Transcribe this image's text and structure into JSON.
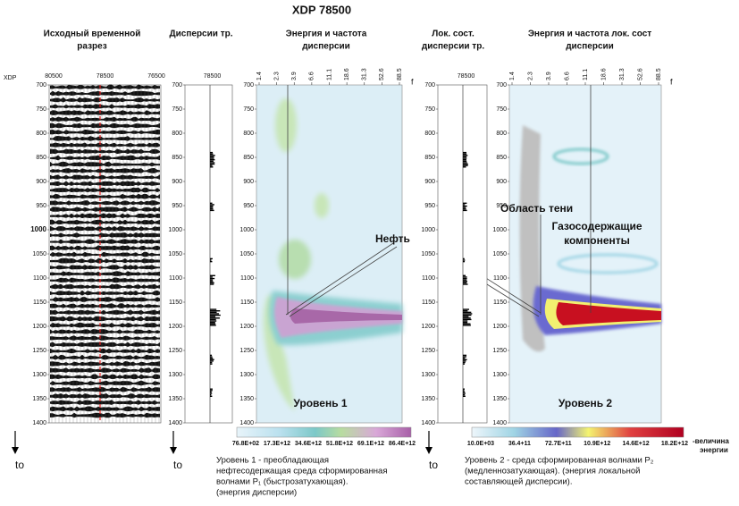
{
  "title": "XDP 78500",
  "xdp_label": "XDP",
  "depth_ticks": [
    700,
    750,
    800,
    850,
    900,
    950,
    1000,
    1050,
    1100,
    1150,
    1200,
    1250,
    1300,
    1350,
    1400
  ],
  "panels": [
    {
      "title": [
        "Исходный временной",
        "разрез"
      ],
      "top_ticks": [
        "80500",
        "78500",
        "76500"
      ]
    },
    {
      "title": [
        "Дисперсии тр."
      ],
      "top_ticks": [
        "78500"
      ]
    },
    {
      "title": [
        "Энергия и частота",
        "дисперсии"
      ],
      "top_ticks": [
        "1.4",
        "2.3",
        "3.9",
        "6.6",
        "11.1",
        "18.6",
        "31.3",
        "52.6",
        "88.5"
      ],
      "axis_end": "f",
      "level": "Уровень 1"
    },
    {
      "title": [
        "Лок. сост.",
        "дисперсии тр."
      ],
      "top_ticks": [
        "78500"
      ]
    },
    {
      "title": [
        "Энергия и частота лок. сост",
        "дисперсии"
      ],
      "top_ticks": [
        "1.4",
        "2.3",
        "3.9",
        "6.6",
        "11.1",
        "18.6",
        "31.3",
        "52.6",
        "88.5"
      ],
      "axis_end": "f",
      "level": "Уровень 2"
    }
  ],
  "to_label": "to",
  "annotations": {
    "oil": "Нефть",
    "shadow": "Область тени",
    "gas": [
      "Газосодержащие",
      "компоненты"
    ]
  },
  "colorbar1": [
    "76.8E+02",
    "17.3E+12",
    "34.6E+12",
    "51.8E+12",
    "69.1E+12",
    "86.4E+12"
  ],
  "colorbar2": [
    "10.0E+03",
    "36.4+11",
    "72.7E+11",
    "10.9E+12",
    "14.6E+12",
    "18.2E+12"
  ],
  "colorbar2_unit": [
    "-величина",
    "энергии"
  ],
  "caption1": [
    "Уровень 1 - преобладающая",
    "нефтесодержащая  среда сформированная",
    "волнами P₁ (быстрозатухающая).",
    "(энергия дисперсии)"
  ],
  "caption2": [
    "Уровень 2 - среда сформированная  волнами P₂",
    "(медленнозатухающая).       (энергия локальной",
    "составляющей дисперсии)."
  ]
}
